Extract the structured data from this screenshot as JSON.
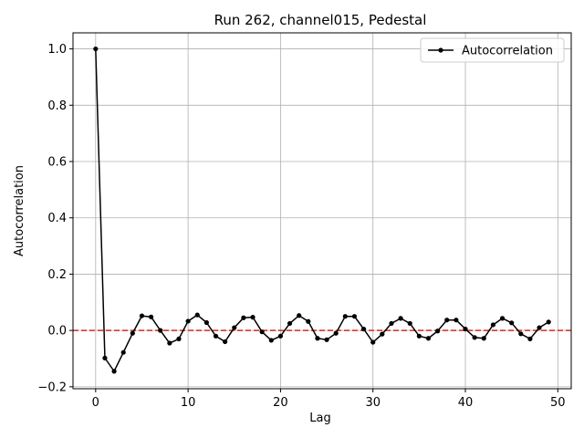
{
  "chart_data": {
    "type": "line",
    "title": "Run 262, channel015, Pedestal",
    "xlabel": "Lag",
    "ylabel": "Autocorrelation",
    "xlim": [
      -2.45,
      51.45
    ],
    "ylim": [
      -0.207,
      1.057
    ],
    "xticks": [
      0,
      10,
      20,
      30,
      40,
      50
    ],
    "yticks": [
      -0.2,
      0.0,
      0.2,
      0.4,
      0.6,
      0.8,
      1.0
    ],
    "xtick_labels": [
      "0",
      "10",
      "20",
      "30",
      "40",
      "50"
    ],
    "ytick_labels": [
      "−0.2",
      "0.0",
      "0.2",
      "0.4",
      "0.6",
      "0.8",
      "1.0"
    ],
    "grid": true,
    "legend_position": "top-right",
    "reference_line": {
      "y": 0.0,
      "color": "#d62728",
      "style": "dashed"
    },
    "series": [
      {
        "name": "Autocorrelation",
        "color": "#000000",
        "marker": "circle",
        "x": [
          0,
          1,
          2,
          3,
          4,
          5,
          6,
          7,
          8,
          9,
          10,
          11,
          12,
          13,
          14,
          15,
          16,
          17,
          18,
          19,
          20,
          21,
          22,
          23,
          24,
          25,
          26,
          27,
          28,
          29,
          30,
          31,
          32,
          33,
          34,
          35,
          36,
          37,
          38,
          39,
          40,
          41,
          42,
          43,
          44,
          45,
          46,
          47,
          48,
          49
        ],
        "y": [
          1.0,
          -0.098,
          -0.145,
          -0.078,
          -0.01,
          0.052,
          0.048,
          0.0,
          -0.045,
          -0.03,
          0.033,
          0.055,
          0.028,
          -0.02,
          -0.04,
          0.01,
          0.045,
          0.047,
          -0.005,
          -0.035,
          -0.02,
          0.025,
          0.053,
          0.032,
          -0.028,
          -0.033,
          -0.01,
          0.05,
          0.05,
          0.005,
          -0.042,
          -0.013,
          0.025,
          0.043,
          0.025,
          -0.02,
          -0.028,
          -0.002,
          0.037,
          0.037,
          0.005,
          -0.025,
          -0.028,
          0.02,
          0.043,
          0.027,
          -0.012,
          -0.03,
          0.01,
          0.03
        ]
      }
    ]
  }
}
